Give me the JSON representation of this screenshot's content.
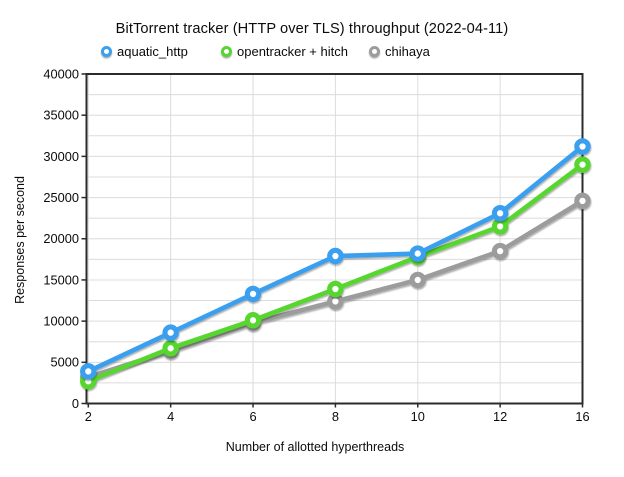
{
  "chart": {
    "title": "BitTorrent tracker (HTTP over TLS) throughput (2022-04-11)"
  },
  "chart_data": {
    "type": "line",
    "title": "BitTorrent tracker (HTTP over TLS) throughput (2022-04-11)",
    "xlabel": "Number of allotted hyperthreads",
    "ylabel": "Responses per second",
    "categories": [
      2,
      4,
      6,
      8,
      10,
      12,
      16
    ],
    "ylim": [
      0,
      40000
    ],
    "y_major_tick_step": 5000,
    "y_minor_gridline_step": 2500,
    "grid": true,
    "legend_position": "top",
    "marker_style": "open-circle",
    "series": [
      {
        "name": "aquatic_http",
        "color": "#3b9ff0",
        "values": [
          3900,
          8600,
          13300,
          17900,
          18200,
          23100,
          31200
        ]
      },
      {
        "name": "opentracker + hitch",
        "color": "#56d62f",
        "values": [
          2700,
          6700,
          10100,
          13900,
          17800,
          21500,
          29000
        ]
      },
      {
        "name": "chihaya",
        "color": "#9c9c9c",
        "values": [
          3200,
          6400,
          9800,
          12400,
          15000,
          18500,
          24600
        ]
      }
    ]
  }
}
